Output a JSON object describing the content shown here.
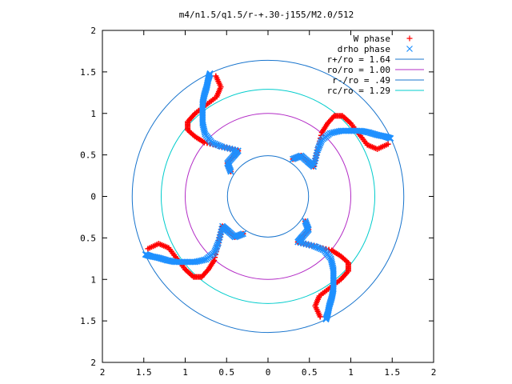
{
  "chart_data": {
    "type": "scatter",
    "title": "m4/n1.5/q1.5/r-+.30-j155/M2.0/512",
    "xlabel": "",
    "ylabel": "",
    "xlim": [
      -2,
      2
    ],
    "ylim": [
      -2,
      2
    ],
    "x_tick_values": [
      -2,
      -1.5,
      -1,
      -0.5,
      0,
      0.5,
      1,
      1.5,
      2
    ],
    "x_tick_labels": [
      "2",
      "1.5",
      "1",
      "0.5",
      "0",
      "0.5",
      "1",
      "1.5",
      "2"
    ],
    "y_tick_values": [
      2,
      1.5,
      1,
      0.5,
      0,
      -0.5,
      -1,
      -1.5,
      -2
    ],
    "y_tick_labels": [
      "2",
      "1.5",
      "1",
      "0.5",
      "0",
      "0.5",
      "1",
      "1.5",
      "2"
    ],
    "grid": false,
    "legend_position": "top-right",
    "series": [
      {
        "name": "W phase",
        "marker": "+",
        "color": "#ff0000",
        "x": [
          0.3,
          0.4,
          0.48,
          0.55,
          0.6,
          0.65,
          0.72,
          0.8,
          0.9,
          1.0,
          1.1,
          1.2,
          1.32,
          1.45
        ],
        "y": [
          0.45,
          0.49,
          0.42,
          0.36,
          0.56,
          0.77,
          0.88,
          0.97,
          0.97,
          0.88,
          0.75,
          0.62,
          0.57,
          0.63
        ]
      },
      {
        "name": "drho phase",
        "marker": "x",
        "color": "#1e90ff",
        "x": [
          0.3,
          0.4,
          0.48,
          0.55,
          0.6,
          0.65,
          0.75,
          0.88,
          1.0,
          1.12,
          1.22,
          1.32,
          1.42,
          1.48
        ],
        "y": [
          0.45,
          0.49,
          0.42,
          0.36,
          0.56,
          0.68,
          0.76,
          0.79,
          0.79,
          0.79,
          0.77,
          0.74,
          0.72,
          0.7
        ]
      },
      {
        "name": "r+/ro = 1.64",
        "type": "circle",
        "radius": 1.64,
        "color": "#1874cd"
      },
      {
        "name": "ro/ro = 1.00",
        "type": "circle",
        "radius": 1.0,
        "color": "#b32cc6"
      },
      {
        "name": "r-/ro = .49",
        "type": "circle",
        "radius": 0.49,
        "color": "#1874cd"
      },
      {
        "name": "rc/ro = 1.29",
        "type": "circle",
        "radius": 1.29,
        "color": "#00cccc"
      }
    ],
    "symmetry": 4
  }
}
